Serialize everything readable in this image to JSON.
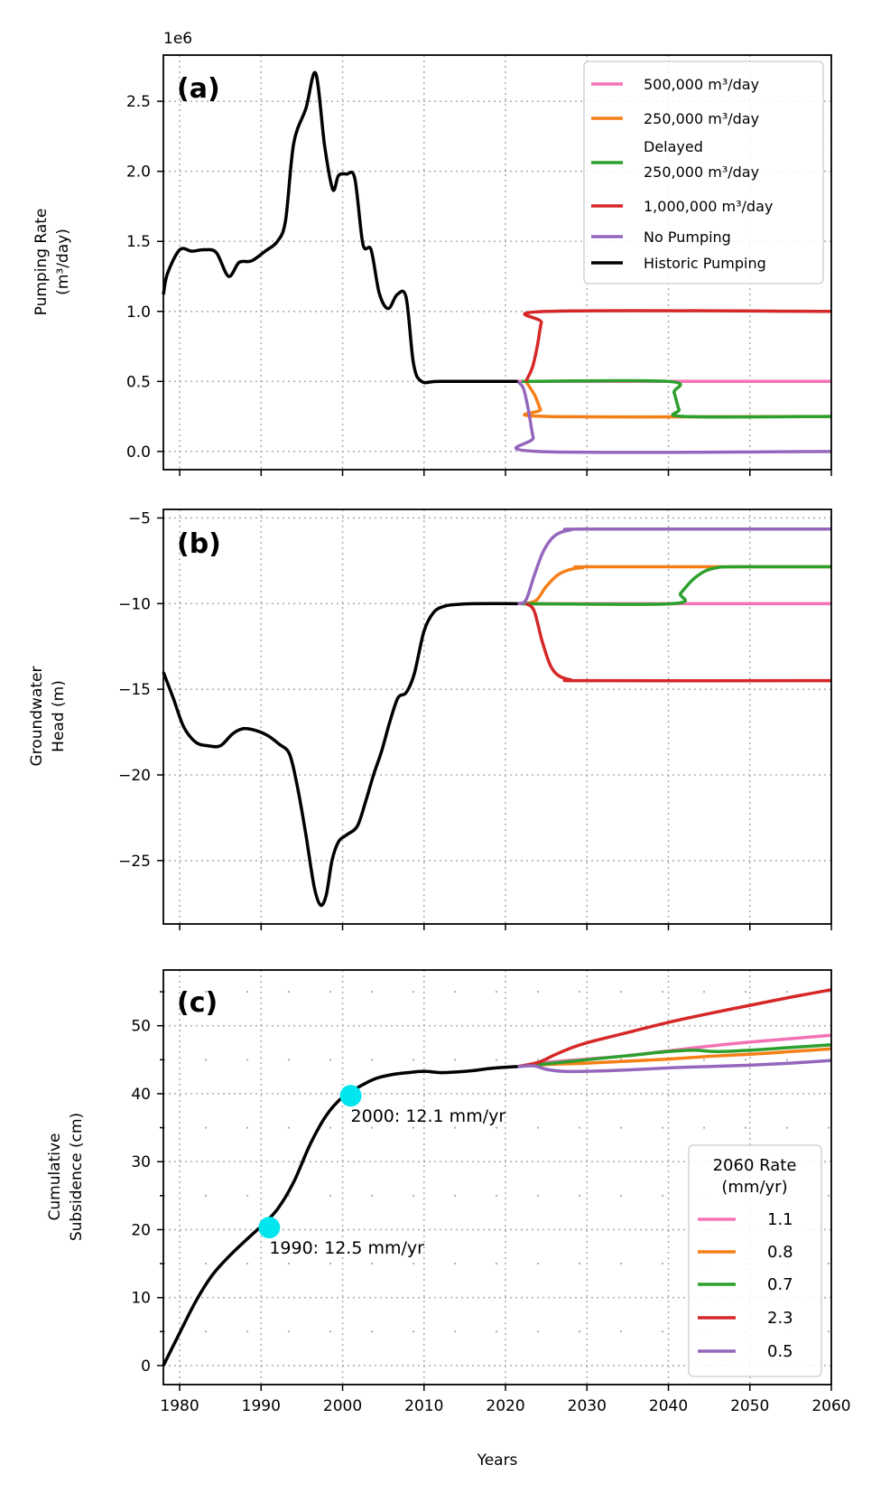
{
  "figure": {
    "x_label": "Years",
    "x_ticks": [
      1980,
      1990,
      2000,
      2010,
      2020,
      2030,
      2040,
      2050,
      2060
    ]
  },
  "colors": {
    "pink": "#f472b6",
    "orange": "#f57f17",
    "green": "#2ca02c",
    "red": "#d62728",
    "purple": "#9467bd",
    "black": "#000000",
    "cyan": "#00e5ee"
  },
  "chart_data": [
    {
      "panel": "(a)",
      "type": "line",
      "ylabel_line1": "Pumping Rate",
      "ylabel_line2": "(m³/day)",
      "offset_text": "1e6",
      "xlim": [
        1978,
        2060
      ],
      "ylim": [
        -0.13,
        2.83
      ],
      "y_ticks": [
        "0.0",
        "0.5",
        "1.0",
        "1.5",
        "2.0",
        "2.5"
      ],
      "legend": [
        "500,000 m³/day",
        "250,000 m³/day",
        "Delayed 250,000 m³/day",
        "1,000,000 m³/day",
        "No Pumping",
        "Historic Pumping"
      ],
      "legend_position": "upper right",
      "series": [
        {
          "name": "500,000 m³/day",
          "color": "pink",
          "x": [
            2021.5,
            2060
          ],
          "y": [
            0.5,
            0.5
          ]
        },
        {
          "name": "250,000 m³/day",
          "color": "orange",
          "x": [
            2022.5,
            2023.6,
            2024.3,
            2025,
            2060
          ],
          "y": [
            0.5,
            0.4,
            0.3,
            0.25,
            0.25
          ]
        },
        {
          "name": "Delayed 250,000 m³/day",
          "color": "green",
          "x": [
            2022,
            2040,
            2040.7,
            2041.3,
            2042,
            2060
          ],
          "y": [
            0.5,
            0.5,
            0.42,
            0.3,
            0.25,
            0.25
          ]
        },
        {
          "name": "1,000,000 m³/day",
          "color": "red",
          "x": [
            2022.5,
            2023.3,
            2023.9,
            2024.4,
            2025,
            2060
          ],
          "y": [
            0.5,
            0.6,
            0.75,
            0.92,
            1.0,
            1.0
          ]
        },
        {
          "name": "No Pumping",
          "color": "purple",
          "x": [
            2021.5,
            2022.2,
            2022.8,
            2023.4,
            2024,
            2060
          ],
          "y": [
            0.5,
            0.45,
            0.3,
            0.1,
            0.0,
            0.0
          ]
        },
        {
          "name": "Historic Pumping",
          "color": "black",
          "x": [
            1978,
            1978.5,
            1980,
            1981.5,
            1983,
            1984.5,
            1986,
            1987.3,
            1988.8,
            1990.5,
            1992,
            1993,
            1994,
            1995.5,
            1996.7,
            1997.8,
            1998.8,
            1999.5,
            2000.5,
            2001.5,
            2002.5,
            2003.5,
            2004.5,
            2005.6,
            2006.7,
            2007.8,
            2008.7,
            2009.7,
            2012,
            2021.5
          ],
          "y": [
            1.12,
            1.27,
            1.44,
            1.43,
            1.44,
            1.42,
            1.25,
            1.35,
            1.36,
            1.43,
            1.5,
            1.65,
            2.2,
            2.45,
            2.7,
            2.18,
            1.87,
            1.97,
            1.98,
            1.95,
            1.48,
            1.44,
            1.13,
            1.02,
            1.12,
            1.1,
            0.63,
            0.5,
            0.5,
            0.5
          ]
        }
      ]
    },
    {
      "panel": "(b)",
      "type": "line",
      "ylabel_line1": "Groundwater",
      "ylabel_line2": "Head (m)",
      "xlim": [
        1978,
        2060
      ],
      "ylim": [
        -28.7,
        -4.5
      ],
      "y_ticks": [
        "−25",
        "−20",
        "−15",
        "−10",
        "−5"
      ],
      "series": [
        {
          "name": "500,000 m³/day",
          "color": "pink",
          "x": [
            2021.5,
            2060
          ],
          "y": [
            -10.0,
            -10.0
          ]
        },
        {
          "name": "250,000 m³/day",
          "color": "orange",
          "x": [
            2022.5,
            2023.8,
            2025,
            2026.5,
            2028,
            2029.5,
            2031,
            2060
          ],
          "y": [
            -10.0,
            -9.8,
            -9.0,
            -8.3,
            -8.0,
            -7.9,
            -7.85,
            -7.85
          ]
        },
        {
          "name": "Delayed 250,000 m³/day",
          "color": "green",
          "x": [
            2022,
            2040.5,
            2041.5,
            2043,
            2044.5,
            2046,
            2048,
            2060
          ],
          "y": [
            -10.0,
            -10.0,
            -9.4,
            -8.6,
            -8.1,
            -7.9,
            -7.85,
            -7.85
          ]
        },
        {
          "name": "1,000,000 m³/day",
          "color": "red",
          "x": [
            2022.5,
            2023.5,
            2024.5,
            2025.5,
            2026.5,
            2028,
            2030,
            2060
          ],
          "y": [
            -10.0,
            -10.4,
            -12.2,
            -13.6,
            -14.2,
            -14.45,
            -14.5,
            -14.5
          ]
        },
        {
          "name": "No Pumping",
          "color": "purple",
          "x": [
            2021.5,
            2022.5,
            2023.5,
            2024.5,
            2025.5,
            2026.5,
            2028,
            2030,
            2060
          ],
          "y": [
            -10.0,
            -9.8,
            -8.4,
            -7.1,
            -6.3,
            -5.9,
            -5.7,
            -5.65,
            -5.65
          ]
        },
        {
          "name": "Historic Pumping",
          "color": "black",
          "x": [
            1978,
            1979.2,
            1980.5,
            1982,
            1983.5,
            1985,
            1986.5,
            1987.8,
            1989.3,
            1990.8,
            1992.2,
            1993.5,
            1994.5,
            1995.5,
            1996.5,
            1997.3,
            1998,
            1998.7,
            1999.5,
            2000.5,
            2001.8,
            2002.8,
            2003.8,
            2004.8,
            2005.8,
            2006.8,
            2007.8,
            2008.8,
            2010,
            2011.2,
            2012.5,
            2014,
            2016,
            2021.5
          ],
          "y": [
            -14.0,
            -15.5,
            -17.2,
            -18.1,
            -18.3,
            -18.3,
            -17.6,
            -17.3,
            -17.4,
            -17.7,
            -18.2,
            -18.8,
            -20.8,
            -23.5,
            -26.5,
            -27.6,
            -27.0,
            -25.0,
            -23.9,
            -23.5,
            -23.0,
            -21.6,
            -20.0,
            -18.6,
            -16.9,
            -15.5,
            -15.2,
            -14.1,
            -11.6,
            -10.5,
            -10.15,
            -10.05,
            -10.0,
            -10.0
          ]
        }
      ]
    },
    {
      "panel": "(c)",
      "type": "line",
      "ylabel_line1": "Cumulative",
      "ylabel_line2": "Subsidence (cm)",
      "xlim": [
        1978,
        2060
      ],
      "ylim": [
        -2.8,
        58.2
      ],
      "y_ticks": [
        "0",
        "10",
        "20",
        "30",
        "40",
        "50"
      ],
      "legend_title_line1": "2060 Rate",
      "legend_title_line2": "(mm/yr)",
      "legend": [
        "1.1",
        "0.8",
        "0.7",
        "2.3",
        "0.5"
      ],
      "legend_position": "lower right",
      "points": [
        {
          "x": 1991,
          "y": 20.3,
          "label": "1990: 12.5 mm/yr"
        },
        {
          "x": 2001,
          "y": 39.7,
          "label": "2000: 12.1 mm/yr"
        }
      ],
      "series": [
        {
          "name": "1.1",
          "color": "pink",
          "x": [
            2021.5,
            2025,
            2030,
            2035,
            2040,
            2045,
            2050,
            2055,
            2060
          ],
          "y": [
            44.0,
            44.6,
            45.1,
            45.6,
            46.3,
            47.0,
            47.6,
            48.1,
            48.6
          ]
        },
        {
          "name": "0.8",
          "color": "orange",
          "x": [
            2021.5,
            2025,
            2030,
            2035,
            2040,
            2045,
            2050,
            2055,
            2060
          ],
          "y": [
            44.0,
            44.3,
            44.5,
            44.8,
            45.1,
            45.5,
            45.8,
            46.2,
            46.6
          ]
        },
        {
          "name": "0.7",
          "color": "green",
          "x": [
            2021.5,
            2025,
            2030,
            2035,
            2040,
            2043,
            2046,
            2050,
            2055,
            2060
          ],
          "y": [
            44.0,
            44.4,
            45.0,
            45.6,
            46.2,
            46.4,
            46.2,
            46.4,
            46.8,
            47.2
          ]
        },
        {
          "name": "2.3",
          "color": "red",
          "x": [
            2021.5,
            2024,
            2026,
            2028,
            2030,
            2035,
            2040,
            2045,
            2050,
            2055,
            2060
          ],
          "y": [
            44.0,
            44.6,
            45.7,
            46.7,
            47.5,
            49.0,
            50.5,
            51.8,
            53.0,
            54.2,
            55.3
          ]
        },
        {
          "name": "0.5",
          "color": "purple",
          "x": [
            2021.5,
            2023.5,
            2025,
            2027,
            2030,
            2035,
            2040,
            2045,
            2050,
            2055,
            2060
          ],
          "y": [
            44.0,
            44.1,
            43.6,
            43.3,
            43.3,
            43.5,
            43.8,
            44.0,
            44.2,
            44.5,
            44.9
          ]
        },
        {
          "name": "Historic",
          "color": "black",
          "x": [
            1978,
            1980,
            1982,
            1984,
            1986,
            1988,
            1990,
            1992,
            1994,
            1996,
            1998,
            2000,
            2002,
            2004,
            2006,
            2008,
            2010,
            2012,
            2014,
            2016,
            2018,
            2020,
            2021.5
          ],
          "y": [
            0.0,
            4.8,
            9.5,
            13.3,
            16.0,
            18.3,
            20.5,
            23.0,
            27.0,
            32.5,
            36.8,
            39.5,
            41.0,
            42.2,
            42.8,
            43.1,
            43.3,
            43.1,
            43.2,
            43.4,
            43.7,
            43.9,
            44.0
          ]
        }
      ]
    }
  ]
}
